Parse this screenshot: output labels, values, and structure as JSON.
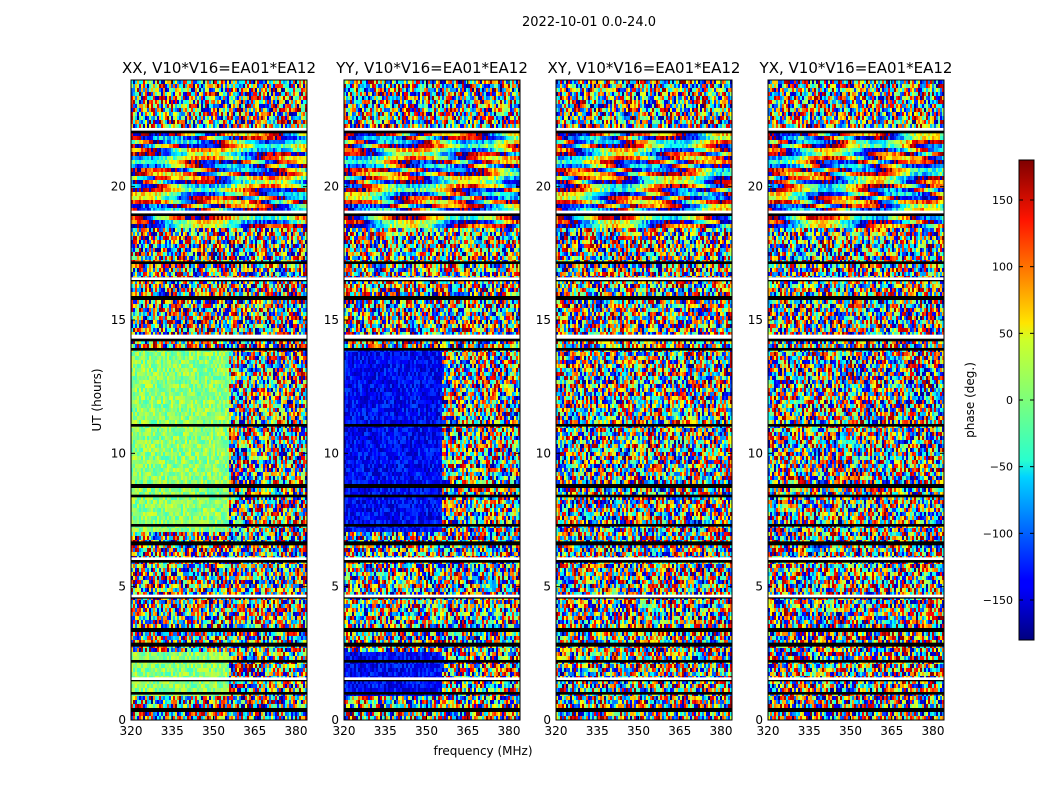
{
  "chart_data": {
    "type": "heatmap",
    "suptitle": "2022-10-01 0.0-24.0",
    "xlabel": "frequency (MHz)",
    "ylabel": "UT (hours)",
    "xlim": [
      320,
      384
    ],
    "ylim": [
      0,
      24
    ],
    "xticks": [
      320,
      335,
      350,
      365,
      380
    ],
    "yticks": [
      0,
      5,
      10,
      15,
      20
    ],
    "panels": [
      {
        "title": "XX, V10*V16=EA01*EA12",
        "low_fringe_base_phase": 5
      },
      {
        "title": "YY, V10*V16=EA01*EA12",
        "low_fringe_base_phase": -135
      },
      {
        "title": "XY, V10*V16=EA01*EA12",
        "low_fringe_base_phase": null
      },
      {
        "title": "YX, V10*V16=EA01*EA12",
        "low_fringe_base_phase": null
      }
    ],
    "colorbar": {
      "label": "phase (deg.)",
      "range": [
        -180,
        180
      ],
      "ticks": [
        150,
        100,
        50,
        0,
        -50,
        -100,
        -150
      ],
      "tick_labels": [
        "150",
        "100",
        "50",
        "0",
        "−50",
        "−100",
        "−150"
      ],
      "colormap": "jet"
    },
    "flagged_ut_bands": [
      [
        0.3,
        0.45
      ],
      [
        0.95,
        1.05
      ],
      [
        1.45,
        1.55
      ],
      [
        2.15,
        2.25
      ],
      [
        2.75,
        2.9
      ],
      [
        3.3,
        3.45
      ],
      [
        4.55,
        4.65
      ],
      [
        5.9,
        6.0
      ],
      [
        6.55,
        6.7
      ],
      [
        7.25,
        7.35
      ],
      [
        8.35,
        8.45
      ],
      [
        8.7,
        8.85
      ],
      [
        11.0,
        11.1
      ],
      [
        13.85,
        13.95
      ],
      [
        14.2,
        14.35
      ],
      [
        15.75,
        15.9
      ],
      [
        16.45,
        16.6
      ],
      [
        17.1,
        17.2
      ],
      [
        18.9,
        19.0
      ],
      [
        22.0,
        22.15
      ]
    ],
    "gap_ut_bands": [
      [
        1.5,
        1.6
      ],
      [
        4.6,
        4.7
      ],
      [
        6.0,
        6.1
      ],
      [
        14.3,
        14.45
      ],
      [
        16.5,
        16.6
      ],
      [
        19.0,
        19.1
      ],
      [
        22.1,
        22.2
      ]
    ]
  }
}
